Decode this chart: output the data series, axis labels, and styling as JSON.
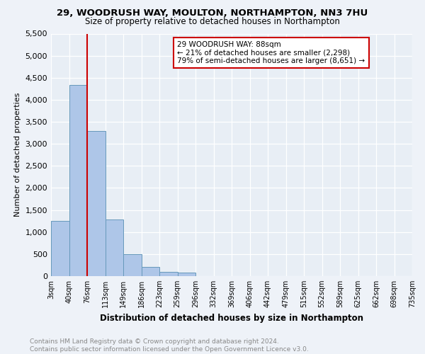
{
  "title1": "29, WOODRUSH WAY, MOULTON, NORTHAMPTON, NN3 7HU",
  "title2": "Size of property relative to detached houses in Northampton",
  "xlabel": "Distribution of detached houses by size in Northampton",
  "ylabel": "Number of detached properties",
  "footer1": "Contains HM Land Registry data © Crown copyright and database right 2024.",
  "footer2": "Contains public sector information licensed under the Open Government Licence v3.0.",
  "bin_labels": [
    "3sqm",
    "40sqm",
    "76sqm",
    "113sqm",
    "149sqm",
    "186sqm",
    "223sqm",
    "259sqm",
    "296sqm",
    "332sqm",
    "369sqm",
    "406sqm",
    "442sqm",
    "479sqm",
    "515sqm",
    "552sqm",
    "589sqm",
    "625sqm",
    "662sqm",
    "698sqm",
    "735sqm"
  ],
  "bar_values": [
    1260,
    4330,
    3290,
    1280,
    490,
    215,
    90,
    75,
    0,
    0,
    0,
    0,
    0,
    0,
    0,
    0,
    0,
    0,
    0,
    0
  ],
  "ylim": [
    0,
    5500
  ],
  "yticks": [
    0,
    500,
    1000,
    1500,
    2000,
    2500,
    3000,
    3500,
    4000,
    4500,
    5000,
    5500
  ],
  "property_line_x": 2.0,
  "annotation_text": "29 WOODRUSH WAY: 88sqm\n← 21% of detached houses are smaller (2,298)\n79% of semi-detached houses are larger (8,651) →",
  "bar_color": "#aec6e8",
  "bar_edge_color": "#6699bb",
  "line_color": "#cc0000",
  "annotation_box_color": "#cc0000",
  "background_color": "#e8eef5",
  "fig_background": "#eef2f8",
  "grid_color": "#ffffff",
  "title1_fontsize": 9.5,
  "title2_fontsize": 8.5,
  "ylabel_fontsize": 8,
  "xlabel_fontsize": 8.5,
  "footer_fontsize": 6.5,
  "ytick_fontsize": 8,
  "xtick_fontsize": 7
}
